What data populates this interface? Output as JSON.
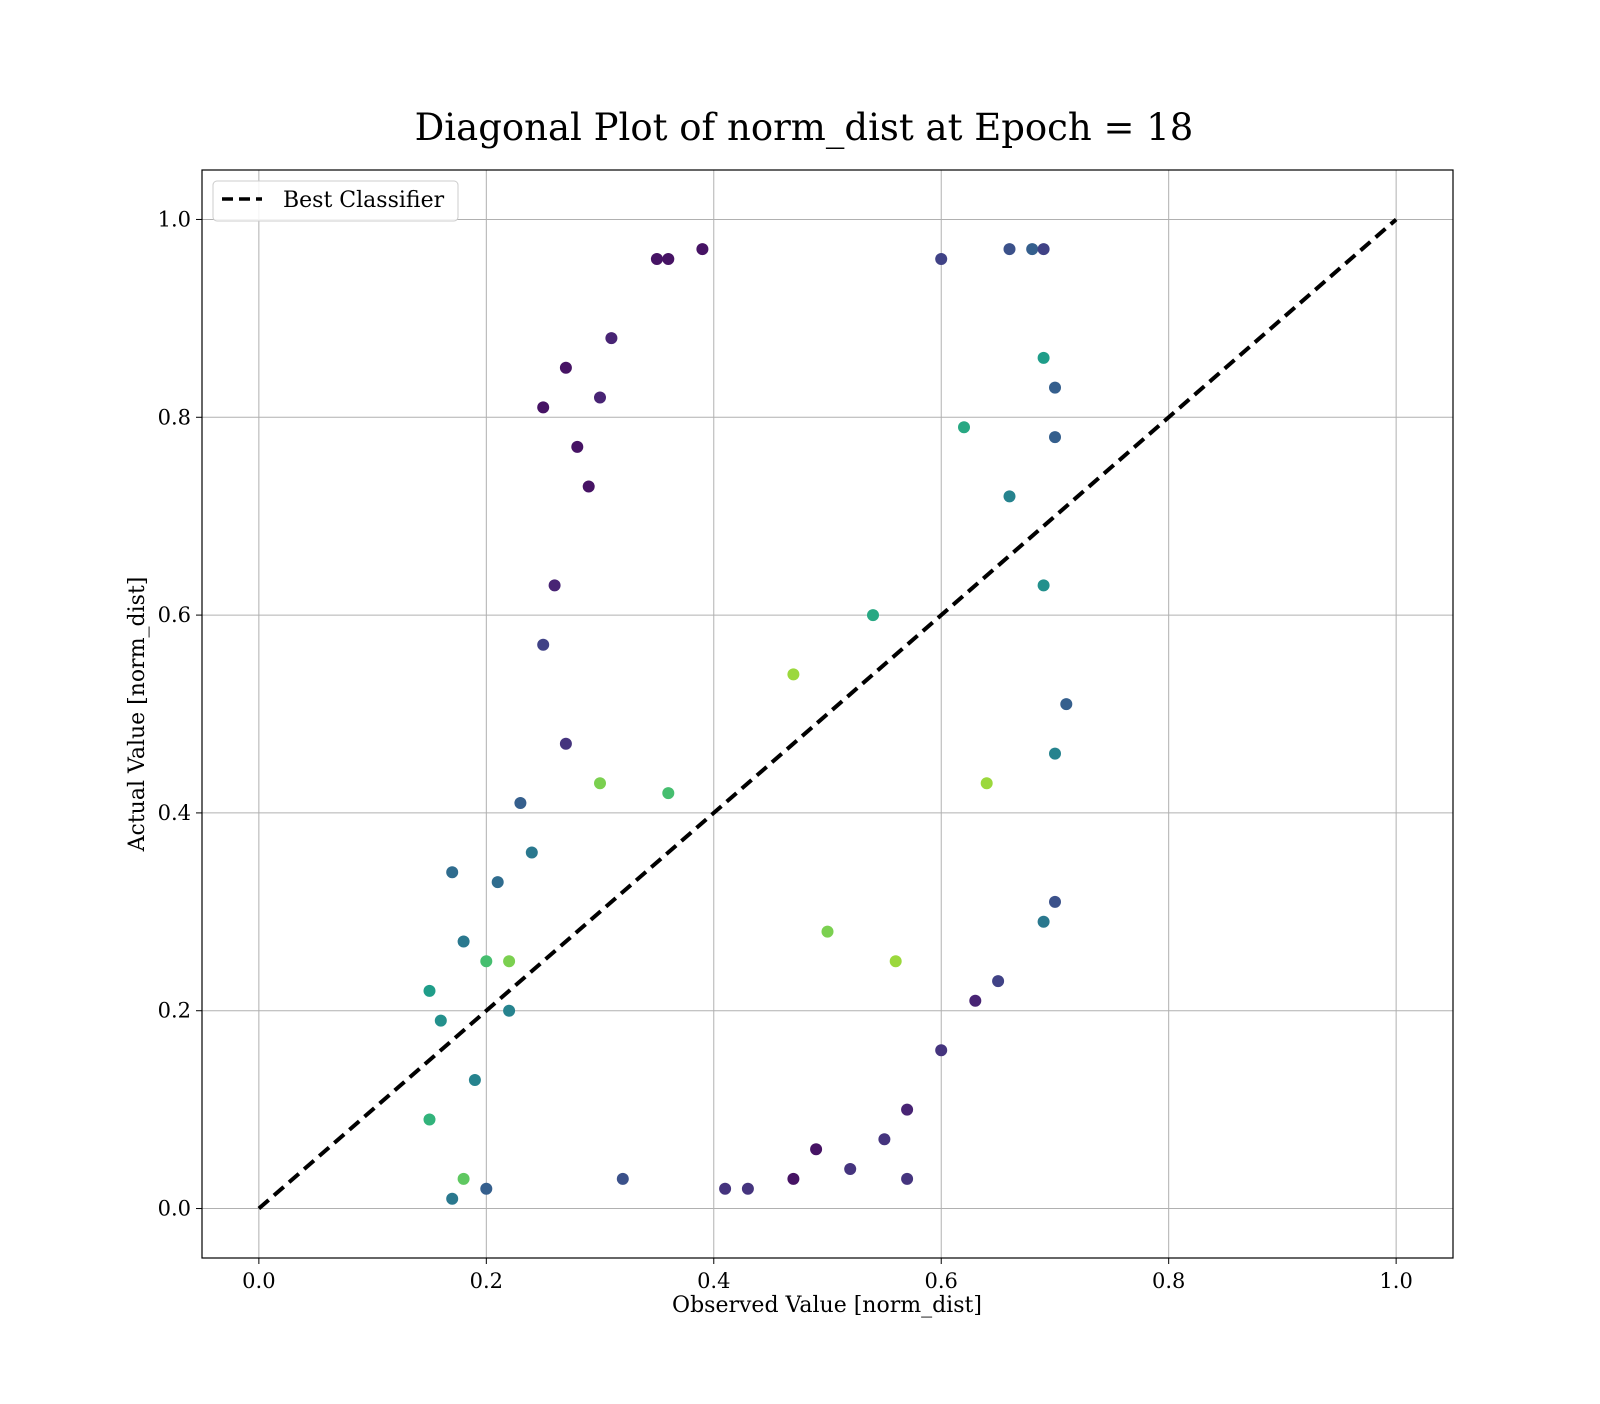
{
  "chart_data": {
    "type": "scatter",
    "title": "Diagonal Plot of norm_dist at Epoch = 18",
    "xlabel": "Observed Value [norm_dist]",
    "ylabel": "Actual Value [norm_dist]",
    "xlim": [
      -0.05,
      1.05
    ],
    "ylim": [
      -0.05,
      1.05
    ],
    "xticks": [
      "0.0",
      "0.2",
      "0.4",
      "0.6",
      "0.8",
      "1.0"
    ],
    "yticks": [
      "0.0",
      "0.2",
      "0.4",
      "0.6",
      "0.8",
      "1.0"
    ],
    "tick_values": [
      0.0,
      0.2,
      0.4,
      0.6,
      0.8,
      1.0
    ],
    "grid": true,
    "legend": {
      "position": "top-left",
      "entries": [
        "Best Classifier"
      ]
    },
    "colormap": "viridis",
    "series": [
      {
        "name": "Best Classifier",
        "type": "line",
        "style": "dashed",
        "color": "#000000",
        "x": [
          0.0,
          1.0
        ],
        "y": [
          0.0,
          1.0
        ]
      }
    ],
    "points": [
      [
        0.15,
        0.22,
        0.55
      ],
      [
        0.15,
        0.09,
        0.65
      ],
      [
        0.16,
        0.19,
        0.5
      ],
      [
        0.17,
        0.01,
        0.4
      ],
      [
        0.17,
        0.34,
        0.35
      ],
      [
        0.18,
        0.03,
        0.75
      ],
      [
        0.18,
        0.27,
        0.4
      ],
      [
        0.19,
        0.13,
        0.45
      ],
      [
        0.2,
        0.02,
        0.3
      ],
      [
        0.21,
        0.33,
        0.35
      ],
      [
        0.22,
        0.25,
        0.8
      ],
      [
        0.23,
        0.41,
        0.3
      ],
      [
        0.25,
        0.81,
        0.05
      ],
      [
        0.25,
        0.57,
        0.2
      ],
      [
        0.26,
        0.63,
        0.1
      ],
      [
        0.27,
        0.85,
        0.05
      ],
      [
        0.27,
        0.47,
        0.15
      ],
      [
        0.28,
        0.77,
        0.05
      ],
      [
        0.29,
        0.73,
        0.05
      ],
      [
        0.3,
        0.82,
        0.1
      ],
      [
        0.31,
        0.88,
        0.1
      ],
      [
        0.32,
        0.03,
        0.25
      ],
      [
        0.35,
        0.96,
        0.05
      ],
      [
        0.36,
        0.96,
        0.05
      ],
      [
        0.39,
        0.97,
        0.05
      ],
      [
        0.41,
        0.02,
        0.15
      ],
      [
        0.43,
        0.02,
        0.15
      ],
      [
        0.47,
        0.03,
        0.05
      ],
      [
        0.49,
        0.06,
        0.05
      ],
      [
        0.52,
        0.04,
        0.15
      ],
      [
        0.55,
        0.07,
        0.15
      ],
      [
        0.57,
        0.1,
        0.1
      ],
      [
        0.57,
        0.03,
        0.15
      ],
      [
        0.6,
        0.16,
        0.15
      ],
      [
        0.6,
        0.96,
        0.2
      ],
      [
        0.63,
        0.21,
        0.1
      ],
      [
        0.65,
        0.23,
        0.2
      ],
      [
        0.66,
        0.97,
        0.25
      ],
      [
        0.68,
        0.97,
        0.3
      ],
      [
        0.69,
        0.97,
        0.2
      ],
      [
        0.69,
        0.86,
        0.55
      ],
      [
        0.7,
        0.83,
        0.3
      ],
      [
        0.7,
        0.78,
        0.3
      ],
      [
        0.7,
        0.46,
        0.45
      ],
      [
        0.71,
        0.51,
        0.3
      ],
      [
        0.7,
        0.31,
        0.25
      ],
      [
        0.69,
        0.29,
        0.4
      ],
      [
        0.69,
        0.63,
        0.5
      ],
      [
        0.2,
        0.25,
        0.7
      ],
      [
        0.22,
        0.2,
        0.45
      ],
      [
        0.24,
        0.36,
        0.4
      ],
      [
        0.3,
        0.43,
        0.8
      ],
      [
        0.36,
        0.42,
        0.7
      ],
      [
        0.47,
        0.54,
        0.85
      ],
      [
        0.5,
        0.28,
        0.8
      ],
      [
        0.54,
        0.6,
        0.6
      ],
      [
        0.56,
        0.25,
        0.85
      ],
      [
        0.64,
        0.43,
        0.85
      ],
      [
        0.62,
        0.79,
        0.6
      ],
      [
        0.66,
        0.72,
        0.45
      ]
    ]
  }
}
